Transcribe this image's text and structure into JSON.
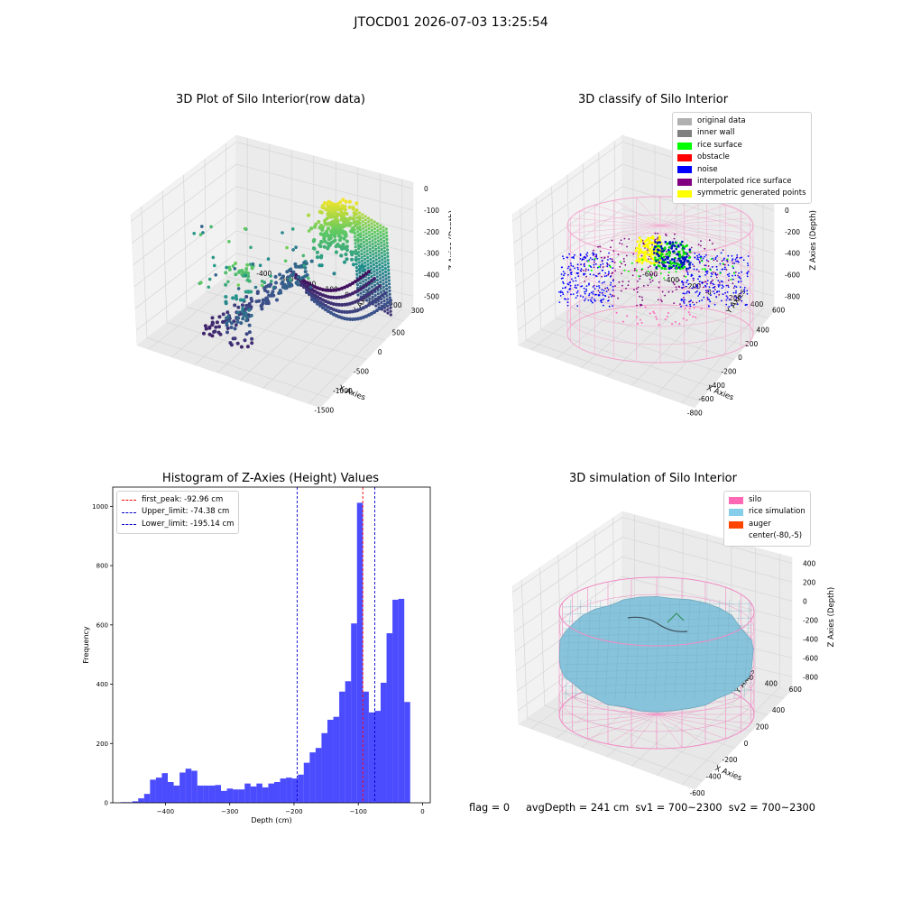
{
  "figure_title": "JTOCD01 2026-07-03 13:25:54",
  "footer": "flag = 0     avgDepth = 241 cm  sv1 = 700~2300  sv2 = 700~2300",
  "chart_data": [
    {
      "type": "scatter",
      "title": "3D Plot of Silo Interior(row data)",
      "xlabel": "X Axies",
      "ylabel": "Y Axies",
      "zlabel": "Z Axies (Depth)",
      "xticks": [
        "-1500",
        "-1000",
        "-500",
        "0",
        "500"
      ],
      "yticks": [
        "300",
        "200",
        "100",
        "0",
        "-100",
        "-200",
        "-300",
        "-400"
      ],
      "zticks": [
        "0",
        "-100",
        "-200",
        "-300",
        "-400",
        "-500"
      ],
      "colormap": "viridis"
    },
    {
      "type": "scatter",
      "title": "3D classify of Silo Interior",
      "xlabel": "X Axies",
      "ylabel": "Y Axies",
      "zlabel": "Z Axies (Depth)",
      "xticks": [
        "-800",
        "-600",
        "-400",
        "-200",
        "0",
        "200",
        "400"
      ],
      "yticks": [
        "600",
        "400",
        "200",
        "0",
        "-200",
        "-400",
        "-600"
      ],
      "zticks": [
        "200",
        "0",
        "-200",
        "-400",
        "-600",
        "-800"
      ],
      "legend": [
        {
          "label": "original data",
          "color": "#b0b0b0"
        },
        {
          "label": "inner wall",
          "color": "#808080"
        },
        {
          "label": "rice surface",
          "color": "#00ff00"
        },
        {
          "label": "obstacle",
          "color": "#ff0000"
        },
        {
          "label": "noise",
          "color": "#0000ff"
        },
        {
          "label": "interpolated rice surface",
          "color": "#800080"
        },
        {
          "label": "symmetric generated points",
          "color": "#ffff00"
        }
      ]
    },
    {
      "type": "bar",
      "title": "Histogram of Z-Axies (Height) Values",
      "xlabel": "Depth (cm)",
      "ylabel": "Frequency",
      "xlim": [
        -482,
        12
      ],
      "ylim": [
        0,
        1065
      ],
      "xticks": [
        -400,
        -300,
        -200,
        -100,
        0
      ],
      "yticks": [
        0,
        200,
        400,
        600,
        800,
        1000
      ],
      "bin_start": -470,
      "bin_width": 9.2,
      "color": "#0000ff",
      "values": [
        2,
        2,
        5,
        15,
        30,
        78,
        85,
        100,
        70,
        58,
        102,
        115,
        108,
        58,
        58,
        58,
        60,
        40,
        48,
        45,
        45,
        65,
        55,
        65,
        52,
        65,
        70,
        82,
        85,
        82,
        95,
        135,
        170,
        185,
        235,
        280,
        290,
        375,
        410,
        605,
        1012,
        375,
        305,
        310,
        405,
        572,
        685,
        688,
        340
      ],
      "lines": [
        {
          "label": "first_peak: -92.96 cm",
          "x": -92.96,
          "color": "#ff0000"
        },
        {
          "label": "Upper_limit: -74.38 cm",
          "x": -74.38,
          "color": "#0000cc"
        },
        {
          "label": "Lower_limit: -195.14 cm",
          "x": -195.14,
          "color": "#0000cc"
        }
      ]
    },
    {
      "type": "surface",
      "title": "3D simulation of Silo Interior",
      "xlabel": "X Axies",
      "ylabel": "Y Axies",
      "zlabel": "Z Axies (Depth)",
      "xticks": [
        "-600",
        "-400",
        "-200",
        "0",
        "200",
        "400"
      ],
      "yticks": [
        "600",
        "400",
        "200",
        "0",
        "-200",
        "-400",
        "-600"
      ],
      "zticks": [
        "400",
        "200",
        "0",
        "-200",
        "-400",
        "-600",
        "-800"
      ],
      "legend": [
        {
          "label": "silo",
          "color": "#ff69b4"
        },
        {
          "label": "rice simulation",
          "color": "#87ceeb"
        },
        {
          "label": "auger",
          "color": "#ff4500"
        },
        {
          "label": "center(-80,-5)",
          "color": "#ffffff"
        }
      ]
    }
  ]
}
